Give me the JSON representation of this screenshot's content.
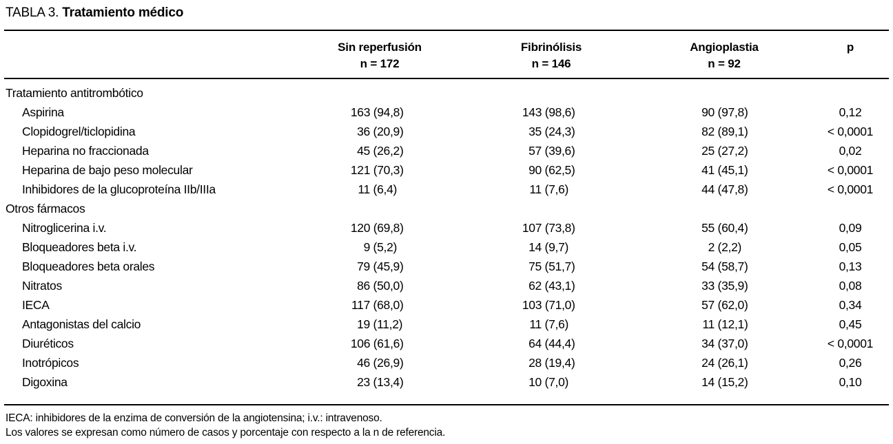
{
  "title": {
    "prefix": "TABLA 3.",
    "name": "Tratamiento médico"
  },
  "table": {
    "columns": [
      {
        "label": "",
        "sub": ""
      },
      {
        "label": "Sin reperfusión",
        "sub": "n = 172"
      },
      {
        "label": "Fibrinólisis",
        "sub": "n = 146"
      },
      {
        "label": "Angioplastia",
        "sub": "n = 92"
      },
      {
        "label": "p",
        "sub": ""
      }
    ],
    "rows": [
      {
        "label": "Tratamiento antitrombótico",
        "section": true,
        "cells": [
          "",
          "",
          "",
          ""
        ]
      },
      {
        "label": "Aspirina",
        "section": false,
        "cells": [
          "163 (94,8)",
          "143 (98,6)",
          "90 (97,8)",
          "0,12"
        ]
      },
      {
        "label": "Clopidogrel/ticlopidina",
        "section": false,
        "cells": [
          "36 (20,9)",
          "35 (24,3)",
          "82 (89,1)",
          "< 0,0001"
        ]
      },
      {
        "label": "Heparina no fraccionada",
        "section": false,
        "cells": [
          "45 (26,2)",
          "57 (39,6)",
          "25 (27,2)",
          "0,02"
        ]
      },
      {
        "label": "Heparina de bajo peso molecular",
        "section": false,
        "cells": [
          "121 (70,3)",
          "90 (62,5)",
          "41 (45,1)",
          "< 0,0001"
        ]
      },
      {
        "label": "Inhibidores de la glucoproteína IIb/IIIa",
        "section": false,
        "cells": [
          "11 (6,4)",
          "11 (7,6)",
          "44 (47,8)",
          "< 0,0001"
        ]
      },
      {
        "label": "Otros fármacos",
        "section": true,
        "cells": [
          "",
          "",
          "",
          ""
        ]
      },
      {
        "label": "Nitroglicerina i.v.",
        "section": false,
        "cells": [
          "120 (69,8)",
          "107 (73,8)",
          "55 (60,4)",
          "0,09"
        ]
      },
      {
        "label": "Bloqueadores beta i.v.",
        "section": false,
        "cells": [
          "9 (5,2)",
          "14 (9,7)",
          "2 (2,2)",
          "0,05"
        ]
      },
      {
        "label": "Bloqueadores beta orales",
        "section": false,
        "cells": [
          "79 (45,9)",
          "75 (51,7)",
          "54 (58,7)",
          "0,13"
        ]
      },
      {
        "label": "Nitratos",
        "section": false,
        "cells": [
          "86 (50,0)",
          "62 (43,1)",
          "33 (35,9)",
          "0,08"
        ]
      },
      {
        "label": "IECA",
        "section": false,
        "cells": [
          "117 (68,0)",
          "103 (71,0)",
          "57 (62,0)",
          "0,34"
        ]
      },
      {
        "label": "Antagonistas del calcio",
        "section": false,
        "cells": [
          "19 (11,2)",
          "11 (7,6)",
          "11 (12,1)",
          "0,45"
        ]
      },
      {
        "label": "Diuréticos",
        "section": false,
        "cells": [
          "106 (61,6)",
          "64 (44,4)",
          "34 (37,0)",
          "< 0,0001"
        ]
      },
      {
        "label": "Inotrópicos",
        "section": false,
        "cells": [
          "46 (26,9)",
          "28 (19,4)",
          "24 (26,1)",
          "0,26"
        ]
      },
      {
        "label": "Digoxina",
        "section": false,
        "cells": [
          "23 (13,4)",
          "10 (7,0)",
          "14 (15,2)",
          "0,10"
        ]
      }
    ]
  },
  "footnotes": [
    "IECA: inhibidores de la enzima de conversión de la angiotensina; i.v.: intravenoso.",
    "Los valores se expresan como número de casos y porcentaje con respecto a la n de referencia."
  ]
}
